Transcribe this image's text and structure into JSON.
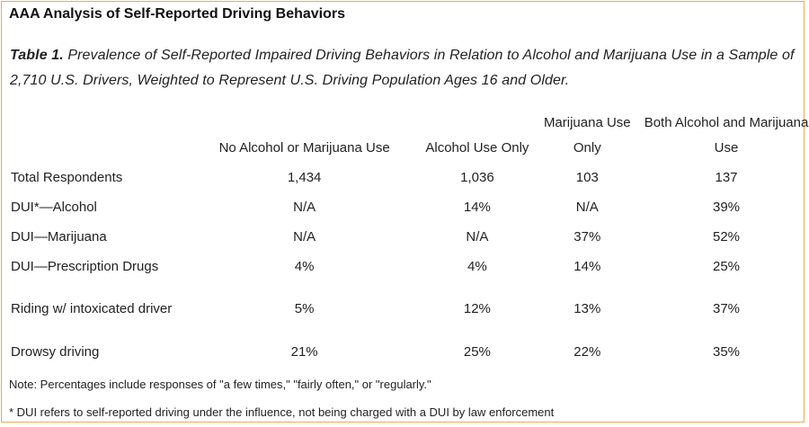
{
  "heading": "AAA Analysis of Self-Reported Driving Behaviors",
  "caption": {
    "label": "Table 1.",
    "text": "Prevalence of Self-Reported Impaired Driving Behaviors in Relation to Alcohol and Marijuana Use in a Sample of 2,710 U.S. Drivers, Weighted to Represent U.S. Driving Population Ages 16 and Older."
  },
  "table": {
    "columns": [
      "",
      "No Alcohol or Marijuana Use",
      "Alcohol Use Only",
      "Marijuana Use Only",
      "Both Alcohol and Marijuana Use"
    ],
    "rows": [
      {
        "label": "Total Respondents",
        "values": [
          "1,434",
          "1,036",
          "103",
          "137"
        ]
      },
      {
        "label": "DUI*—Alcohol",
        "values": [
          "N/A",
          "14%",
          "N/A",
          "39%"
        ]
      },
      {
        "label": "DUI—Marijuana",
        "values": [
          "N/A",
          "N/A",
          "37%",
          "52%"
        ]
      },
      {
        "label": "DUI—Prescription Drugs",
        "values": [
          "4%",
          "4%",
          "14%",
          "25%"
        ]
      },
      {
        "label": "Riding w/ intoxicated driver",
        "values": [
          "5%",
          "12%",
          "13%",
          "37%"
        ]
      },
      {
        "label": "Drowsy driving",
        "values": [
          "21%",
          "25%",
          "22%",
          "35%"
        ]
      }
    ]
  },
  "notes": {
    "note1": "Note: Percentages include responses of \"a few times,\" \"fairly often,\" or \"regularly.\"",
    "note2": "* DUI refers to self-reported driving under the influence, not being charged with a DUI by law enforcement"
  },
  "colors": {
    "border": "#f0a94b"
  }
}
